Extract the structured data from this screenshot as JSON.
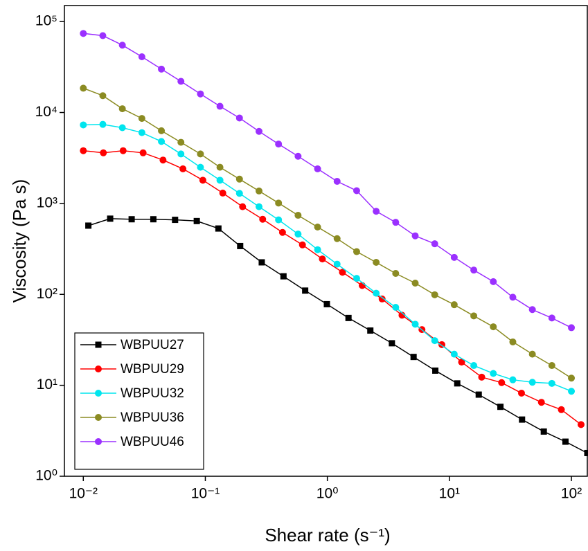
{
  "chart_data": {
    "type": "line",
    "x_label": "Shear rate (s⁻¹)",
    "y_label": "Viscosity (Pa s)",
    "xscale": "log",
    "yscale": "log",
    "xlim": [
      0.007,
      135
    ],
    "ylim": [
      1,
      150000
    ],
    "xticks": [
      {
        "value": 0.01,
        "label": "10⁻²"
      },
      {
        "value": 0.1,
        "label": "10⁻¹"
      },
      {
        "value": 1,
        "label": "10⁰"
      },
      {
        "value": 10,
        "label": "10¹"
      },
      {
        "value": 100,
        "label": "10²"
      }
    ],
    "yticks": [
      {
        "value": 1,
        "label": "10⁰"
      },
      {
        "value": 10,
        "label": "10¹"
      },
      {
        "value": 100,
        "label": "10²"
      },
      {
        "value": 1000,
        "label": "10³"
      },
      {
        "value": 10000,
        "label": "10⁴"
      },
      {
        "value": 100000,
        "label": "10⁵"
      }
    ],
    "legend_location": "lower left",
    "series": [
      {
        "name": "WBPUU27",
        "color": "#000000",
        "marker": "square",
        "x": [
          0.011,
          0.0166,
          0.0249,
          0.0375,
          0.0565,
          0.0851,
          0.128,
          0.193,
          0.29,
          0.437,
          0.658,
          0.991,
          1.49,
          2.25,
          3.38,
          5.09,
          7.67,
          11.6,
          17.4,
          26.2,
          39.4,
          59.4,
          89.4,
          135
        ],
        "values": [
          570,
          680,
          670,
          670,
          660,
          640,
          530,
          340,
          225,
          158,
          110,
          78,
          55,
          40,
          29,
          20.5,
          14.5,
          10.5,
          7.9,
          5.8,
          4.2,
          3.1,
          2.4,
          1.8
        ]
      },
      {
        "name": "WBPUU29",
        "color": "#ff0000",
        "marker": "circle",
        "x": [
          0.01,
          0.0146,
          0.0212,
          0.0309,
          0.045,
          0.0655,
          0.0954,
          0.139,
          0.202,
          0.295,
          0.429,
          0.625,
          0.91,
          1.33,
          1.93,
          2.81,
          4.09,
          5.96,
          8.68,
          12.6,
          18.4,
          26.8,
          39,
          56.8,
          82.7,
          120
        ],
        "values": [
          3800,
          3600,
          3800,
          3600,
          3000,
          2400,
          1800,
          1300,
          920,
          670,
          480,
          350,
          245,
          175,
          125,
          89,
          59,
          41,
          28,
          18,
          12.3,
          10.7,
          8.2,
          6.5,
          5.4,
          3.7
        ]
      },
      {
        "name": "WBPUU32",
        "color": "#00e5ee",
        "marker": "circle",
        "x": [
          0.01,
          0.01445,
          0.02089,
          0.0302,
          0.04365,
          0.0631,
          0.0912,
          0.1318,
          0.1905,
          0.2754,
          0.3981,
          0.5754,
          0.8318,
          1.202,
          1.738,
          2.512,
          3.631,
          5.248,
          7.586,
          10.96,
          15.85,
          22.91,
          33.11,
          47.86,
          69.18,
          100
        ],
        "values": [
          7300,
          7400,
          6800,
          6000,
          4800,
          3500,
          2500,
          1800,
          1290,
          920,
          660,
          460,
          310,
          215,
          150,
          103,
          72,
          47,
          31,
          22,
          16.5,
          13.5,
          11.5,
          10.8,
          10.5,
          8.6
        ]
      },
      {
        "name": "WBPUU36",
        "color": "#8b8b22",
        "marker": "circle",
        "x": [
          0.01,
          0.01445,
          0.02089,
          0.0302,
          0.04365,
          0.0631,
          0.0912,
          0.1318,
          0.1905,
          0.2754,
          0.3981,
          0.5754,
          0.8318,
          1.202,
          1.738,
          2.512,
          3.631,
          5.248,
          7.586,
          10.96,
          15.85,
          22.91,
          33.11,
          47.86,
          69.18,
          100
        ],
        "values": [
          18500,
          15300,
          11000,
          8600,
          6300,
          4700,
          3500,
          2500,
          1850,
          1370,
          1010,
          740,
          550,
          410,
          295,
          225,
          170,
          133,
          99,
          77,
          58,
          44,
          30,
          22,
          16.5,
          12
        ]
      },
      {
        "name": "WBPUU46",
        "color": "#9b30ff",
        "marker": "circle",
        "x": [
          0.01,
          0.01445,
          0.02089,
          0.0302,
          0.04365,
          0.0631,
          0.0912,
          0.1318,
          0.1905,
          0.2754,
          0.3981,
          0.5754,
          0.8318,
          1.202,
          1.738,
          2.512,
          3.631,
          5.248,
          7.586,
          10.96,
          15.85,
          22.91,
          33.11,
          47.86,
          69.18,
          100
        ],
        "values": [
          74000,
          70000,
          55000,
          41000,
          30000,
          22000,
          16000,
          11700,
          8700,
          6200,
          4500,
          3300,
          2400,
          1750,
          1380,
          820,
          620,
          440,
          360,
          255,
          185,
          138,
          93,
          68,
          55,
          43
        ]
      }
    ]
  }
}
